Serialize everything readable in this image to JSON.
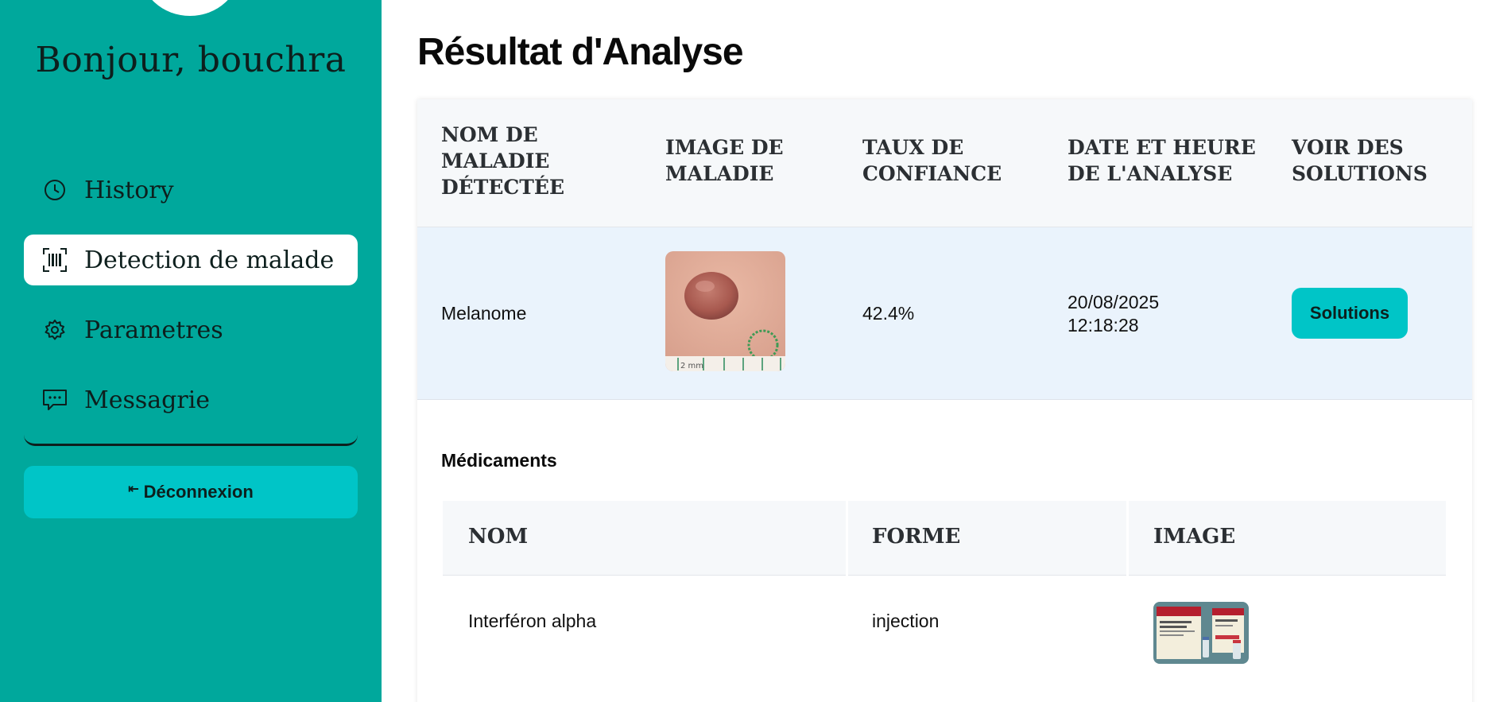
{
  "sidebar": {
    "greeting": "Bonjour, bouchra",
    "items": [
      {
        "label": "History",
        "icon": "clock-icon"
      },
      {
        "label": "Detection de malade",
        "icon": "barcode-scan-icon",
        "active": true
      },
      {
        "label": "Parametres",
        "icon": "gear-icon"
      },
      {
        "label": "Messagrie",
        "icon": "message-icon"
      }
    ],
    "logout_label": "Déconnexion",
    "logout_icon": "logout-arrow-icon"
  },
  "main": {
    "title": "Résultat d'Analyse",
    "table": {
      "headers": [
        "NOM DE MALADIE DÉTECTÉE",
        "IMAGE DE MALADIE",
        "TAUX DE CONFIANCE",
        "DATE ET HEURE DE L'ANALYSE",
        "VOIR DES SOLUTIONS"
      ],
      "row": {
        "disease": "Melanome",
        "image_caption": "2 mm",
        "confidence": "42.4%",
        "date": "20/08/2025",
        "time": "12:18:28",
        "button_label": "Solutions"
      }
    },
    "medications": {
      "title": "Médicaments",
      "headers": [
        "NOM",
        "FORME",
        "IMAGE"
      ],
      "rows": [
        {
          "name": "Interféron alpha",
          "form": "injection"
        }
      ]
    }
  },
  "colors": {
    "sidebar": "#00a89c",
    "accent_button": "#00c5c7",
    "row_highlight": "#eaf3fc",
    "header_bg": "#f6f8fa"
  }
}
